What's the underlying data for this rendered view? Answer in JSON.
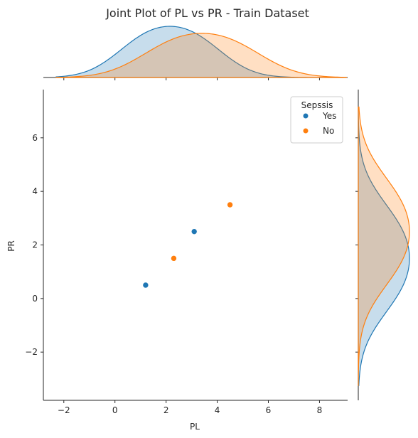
{
  "chart_data": {
    "type": "scatter",
    "title": "Joint Plot of PL vs PR - Train Dataset",
    "xlabel": "PL",
    "ylabel": "PR",
    "xlim": [
      -2.8,
      9.1
    ],
    "ylim": [
      -3.8,
      7.8
    ],
    "xticks": [
      -2,
      0,
      2,
      4,
      6,
      8
    ],
    "yticks": [
      -2,
      0,
      2,
      4,
      6
    ],
    "legend": {
      "title": "Sepssis",
      "placement": "top-right"
    },
    "series": [
      {
        "name": "Yes",
        "color": "#1f77b4",
        "points": [
          {
            "x": 1.2,
            "y": 0.5
          },
          {
            "x": 3.1,
            "y": 2.5
          }
        ]
      },
      {
        "name": "No",
        "color": "#ff7f0e",
        "points": [
          {
            "x": 2.3,
            "y": 1.5
          },
          {
            "x": 4.5,
            "y": 3.5
          }
        ]
      }
    ],
    "marginals": "kde"
  }
}
